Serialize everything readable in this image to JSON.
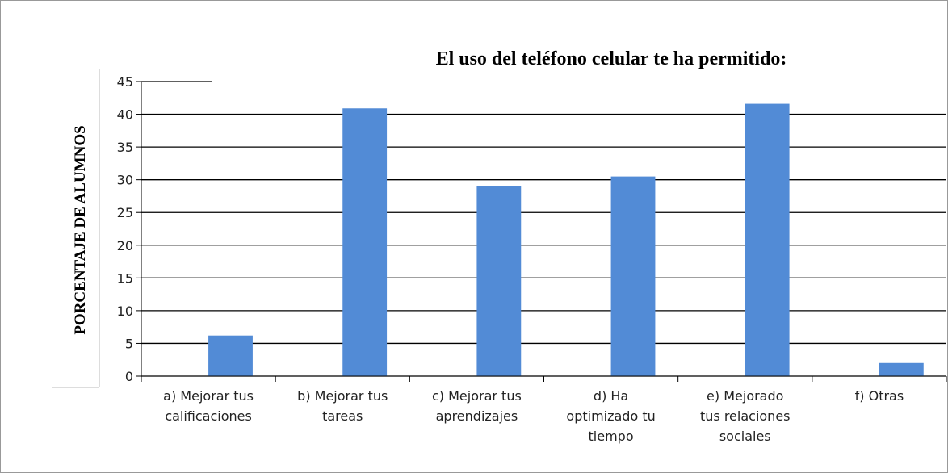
{
  "chart_data": {
    "type": "bar",
    "title": "El uso del teléfono celular te ha permitido:",
    "y_label": "PORCENTAJE DE ALUMNOS",
    "categories": [
      "a) Mejorar tus\ncalificaciones",
      "b) Mejorar tus\ntareas",
      "c) Mejorar tus\naprendizajes",
      "d) Ha\noptimizado tu\ntiempo",
      "e) Mejorado\ntus relaciones\nsociales",
      "f) Otras"
    ],
    "values": [
      6.2,
      40.9,
      29.0,
      30.5,
      41.6,
      2.0
    ],
    "color": "#528bd6",
    "ylim": [
      0,
      45
    ],
    "yticks": [
      0,
      5,
      10,
      15,
      20,
      25,
      30,
      35,
      40,
      45
    ],
    "grid": true
  }
}
